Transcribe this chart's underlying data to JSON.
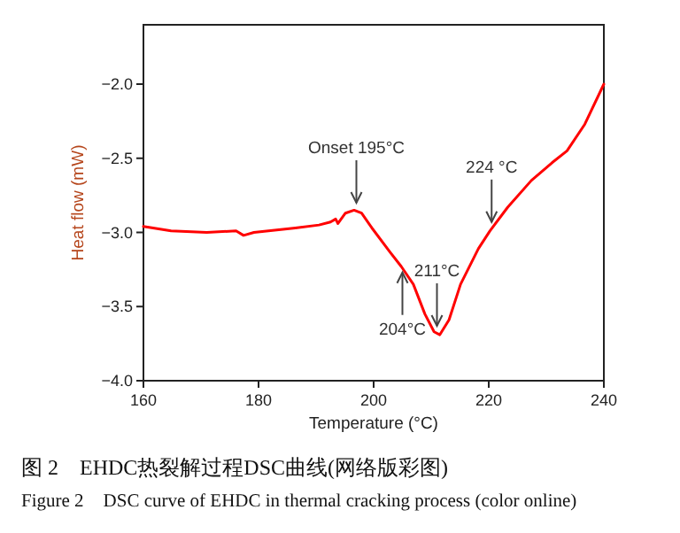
{
  "chart_data": {
    "type": "line",
    "xlabel": "Temperature (°C)",
    "ylabel": "Heat flow (mW)",
    "xlim": [
      160,
      240
    ],
    "ylim": [
      -4.0,
      -1.6
    ],
    "xticks": [
      160,
      180,
      200,
      220,
      240
    ],
    "yticks": [
      {
        "value": -4.0,
        "label": "−4.0"
      },
      {
        "value": -3.5,
        "label": "−3.5"
      },
      {
        "value": -3.0,
        "label": "−3.0"
      },
      {
        "value": -2.5,
        "label": "−2.5"
      },
      {
        "value": -2.0,
        "label": "−2.0"
      }
    ],
    "grid": false,
    "x": [
      160,
      164.8,
      171,
      176.1,
      177.4,
      179.2,
      186.4,
      190.5,
      192.5,
      193.4,
      193.8,
      195.1,
      196.6,
      197.9,
      199.7,
      202.8,
      204.8,
      206.9,
      208.9,
      210.5,
      211.5,
      213.1,
      215.1,
      218.2,
      220.2,
      223.3,
      227.4,
      231.0,
      233.6,
      236.7,
      240
    ],
    "series": [
      {
        "color": "#ff0000",
        "values": [
          -2.96,
          -2.99,
          -3.0,
          -2.99,
          -3.02,
          -3.0,
          -2.97,
          -2.95,
          -2.93,
          -2.91,
          -2.94,
          -2.87,
          -2.85,
          -2.87,
          -2.97,
          -3.13,
          -3.23,
          -3.35,
          -3.55,
          -3.67,
          -3.69,
          -3.59,
          -3.35,
          -3.11,
          -2.99,
          -2.83,
          -2.65,
          -2.53,
          -2.45,
          -2.27,
          -2.0
        ]
      }
    ],
    "annotations": [
      {
        "text": "Onset 195°C",
        "x": 197,
        "y": -2.8
      },
      {
        "text": "204°C",
        "x": 205,
        "y": -3.27
      },
      {
        "text": "211°C",
        "x": 211,
        "y": -3.63
      },
      {
        "text": "224 °C",
        "x": 220.5,
        "y": -2.93
      },
      "图 2　EHDC热裂解过程DSC曲线(网络版彩图)",
      "Figure 2　DSC curve of EHDC in thermal cracking process (color online)"
    ]
  }
}
